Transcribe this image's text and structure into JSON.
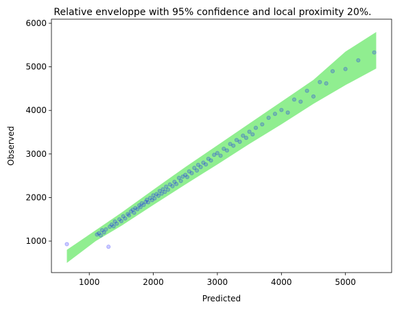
{
  "chart_data": {
    "type": "scatter",
    "title": "Relative enveloppe with 95% confidence and local proximity 20%.",
    "x_label": "Predicted",
    "y_label": "Observed",
    "xlim": [
      409,
      5721
    ],
    "ylim": [
      277,
      6094
    ],
    "xticks": [
      1000,
      2000,
      3000,
      4000,
      5000
    ],
    "yticks": [
      1000,
      2000,
      3000,
      4000,
      5000,
      6000
    ],
    "band": {
      "color": "#90ee90",
      "x": [
        650,
        1100,
        1500,
        2000,
        2500,
        3000,
        3500,
        4000,
        4500,
        5000,
        5480
      ],
      "lower": [
        500,
        1000,
        1350,
        1830,
        2300,
        2760,
        3230,
        3680,
        4150,
        4580,
        4960
      ],
      "upper": [
        800,
        1250,
        1650,
        2180,
        2700,
        3200,
        3700,
        4200,
        4700,
        5350,
        5800
      ]
    },
    "series": [
      {
        "color": "#0000ff",
        "x": [
          650,
          1120,
          1150,
          1180,
          1200,
          1230,
          1260,
          1300,
          1320,
          1350,
          1380,
          1400,
          1430,
          1470,
          1500,
          1530,
          1560,
          1600,
          1620,
          1650,
          1680,
          1700,
          1720,
          1750,
          1780,
          1800,
          1820,
          1850,
          1880,
          1900,
          1920,
          1950,
          1980,
          2000,
          2020,
          2050,
          2080,
          2100,
          2130,
          2150,
          2180,
          2200,
          2230,
          2260,
          2300,
          2330,
          2360,
          2400,
          2430,
          2460,
          2500,
          2530,
          2560,
          2600,
          2640,
          2680,
          2700,
          2740,
          2780,
          2820,
          2860,
          2900,
          2950,
          3000,
          3050,
          3100,
          3150,
          3200,
          3250,
          3300,
          3350,
          3400,
          3450,
          3500,
          3550,
          3600,
          3700,
          3800,
          3900,
          4000,
          4100,
          4200,
          4300,
          4400,
          4500,
          4600,
          4700,
          4800,
          5000,
          5200,
          5450
        ],
        "values": [
          930,
          1150,
          1180,
          1130,
          1250,
          1200,
          1270,
          870,
          1330,
          1380,
          1340,
          1450,
          1400,
          1500,
          1460,
          1570,
          1520,
          1620,
          1590,
          1680,
          1720,
          1650,
          1760,
          1730,
          1820,
          1780,
          1870,
          1830,
          1900,
          1950,
          1890,
          1990,
          1940,
          2050,
          1980,
          2080,
          2040,
          2150,
          2090,
          2190,
          2130,
          2250,
          2180,
          2300,
          2260,
          2360,
          2310,
          2450,
          2380,
          2480,
          2520,
          2470,
          2600,
          2560,
          2680,
          2620,
          2750,
          2700,
          2800,
          2760,
          2890,
          2850,
          2980,
          3020,
          2960,
          3120,
          3080,
          3230,
          3190,
          3320,
          3280,
          3420,
          3370,
          3510,
          3450,
          3600,
          3680,
          3830,
          3920,
          4010,
          3950,
          4250,
          4200,
          4450,
          4320,
          4650,
          4620,
          4900,
          4950,
          5150,
          5330
        ]
      }
    ]
  }
}
